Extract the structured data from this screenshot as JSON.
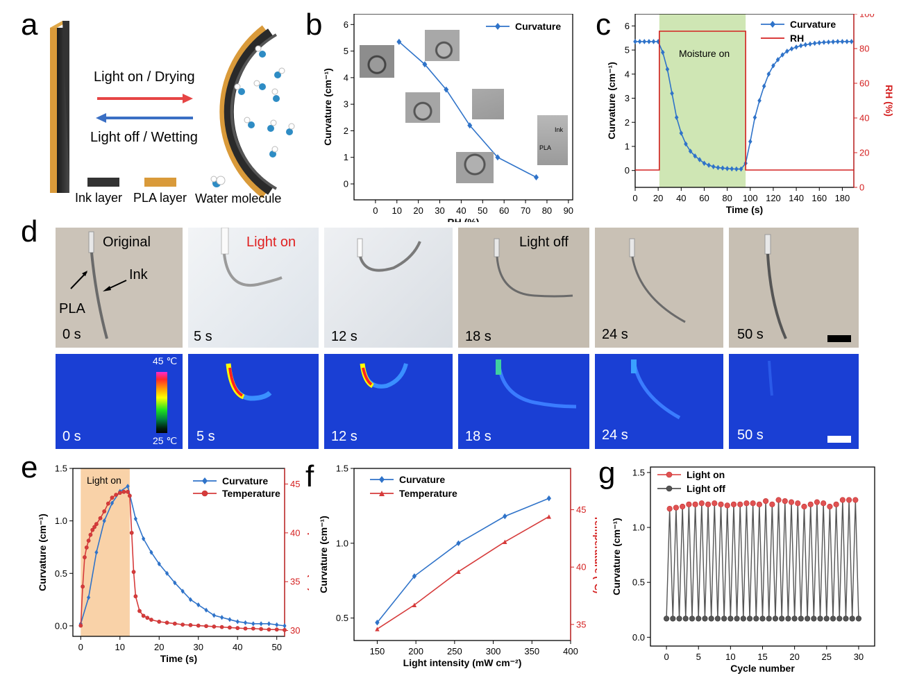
{
  "figure": {
    "panel_labels": [
      "a",
      "b",
      "c",
      "d",
      "e",
      "f",
      "g"
    ]
  },
  "panel_a": {
    "arrow_top": "Light on / Drying",
    "arrow_bottom": "Light off / Wetting",
    "legend": [
      "Ink layer",
      "PLA layer",
      "Water molecule"
    ],
    "colors": {
      "ink": "#333333",
      "pla": "#d99a3a",
      "arrow_top": "#e64545",
      "arrow_bottom": "#3a6fc4",
      "water": "#2e8cc4"
    }
  },
  "panel_d": {
    "top_captions": [
      "Original",
      "Light on",
      "",
      "Light off",
      "",
      ""
    ],
    "top_times": [
      "0 s",
      "5 s",
      "12 s",
      "18 s",
      "24 s",
      "50 s"
    ],
    "bottom_times": [
      "0 s",
      "5 s",
      "12 s",
      "18 s",
      "24 s",
      "50 s"
    ],
    "annot_pla": "PLA",
    "annot_ink": "Ink",
    "colorbar_max": "45 ℃",
    "colorbar_min": "25 ℃",
    "light_on_color": "#e02020"
  },
  "chart_data": [
    {
      "id": "b",
      "type": "line",
      "title": "",
      "xlabel": "RH (%)",
      "ylabel": "Curvature (cm⁻¹)",
      "xlim": [
        -10,
        92
      ],
      "ylim": [
        -0.6,
        6.4
      ],
      "xticks": [
        0,
        10,
        20,
        30,
        40,
        50,
        60,
        70,
        80,
        90
      ],
      "yticks": [
        0,
        1,
        2,
        3,
        4,
        5,
        6
      ],
      "series": [
        {
          "name": "Curvature",
          "color": "#2f73c9",
          "marker": "diamond",
          "x": [
            11,
            23,
            33,
            44,
            57,
            75
          ],
          "y": [
            5.35,
            4.5,
            3.55,
            2.2,
            1.0,
            0.25
          ]
        }
      ],
      "inset_labels": {
        "ink": "Ink",
        "pla": "PLA"
      }
    },
    {
      "id": "c",
      "type": "line",
      "xlabel": "Time (s)",
      "ylabel": "Curvature (cm⁻¹)",
      "y2label": "RH (%)",
      "xlim": [
        0,
        190
      ],
      "ylim": [
        -0.7,
        6.5
      ],
      "y2lim": [
        0,
        100
      ],
      "xticks": [
        0,
        20,
        40,
        60,
        80,
        100,
        120,
        140,
        160,
        180
      ],
      "yticks": [
        0,
        1,
        2,
        3,
        4,
        5,
        6
      ],
      "y2ticks": [
        0,
        20,
        40,
        60,
        80,
        100
      ],
      "annotation": "Moisture on",
      "shade": [
        21,
        96
      ],
      "series": [
        {
          "name": "Curvature",
          "color": "#2f73c9",
          "marker": "diamond",
          "axis": "left",
          "x": [
            0,
            4,
            8,
            12,
            16,
            20,
            24,
            28,
            32,
            36,
            40,
            44,
            48,
            52,
            56,
            60,
            64,
            68,
            72,
            76,
            80,
            84,
            88,
            92,
            96,
            100,
            104,
            108,
            112,
            116,
            120,
            124,
            128,
            132,
            136,
            140,
            144,
            148,
            152,
            156,
            160,
            164,
            168,
            172,
            176,
            180,
            184,
            188
          ],
          "y": [
            5.35,
            5.35,
            5.35,
            5.35,
            5.35,
            5.35,
            4.9,
            4.2,
            3.2,
            2.2,
            1.55,
            1.1,
            0.8,
            0.6,
            0.45,
            0.3,
            0.22,
            0.16,
            0.12,
            0.1,
            0.08,
            0.07,
            0.06,
            0.06,
            0.3,
            1.2,
            2.2,
            2.9,
            3.5,
            4.0,
            4.35,
            4.6,
            4.8,
            4.95,
            5.05,
            5.12,
            5.18,
            5.22,
            5.25,
            5.28,
            5.3,
            5.32,
            5.33,
            5.34,
            5.35,
            5.35,
            5.35,
            5.35
          ]
        },
        {
          "name": "RH",
          "color": "#d42020",
          "marker": "none",
          "axis": "right",
          "x": [
            0,
            21,
            21,
            96,
            96,
            190
          ],
          "y": [
            10,
            10,
            90,
            90,
            10,
            10
          ]
        }
      ]
    },
    {
      "id": "e",
      "type": "line",
      "xlabel": "Time (s)",
      "ylabel": "Curvature (cm⁻¹)",
      "y2label": "Temperature (℃)",
      "xlim": [
        -2,
        52
      ],
      "ylim": [
        -0.1,
        1.5
      ],
      "y2lim": [
        29.4,
        46.6
      ],
      "xticks": [
        0,
        10,
        20,
        30,
        40,
        50
      ],
      "yticks": [
        0.0,
        0.5,
        1.0,
        1.5
      ],
      "y2ticks": [
        30,
        35,
        40,
        45
      ],
      "annotation": "Light on",
      "shade": [
        0,
        12.5
      ],
      "series": [
        {
          "name": "Curvature",
          "color": "#2f73c9",
          "marker": "diamond",
          "axis": "left",
          "x": [
            0,
            2,
            4,
            6,
            8,
            10,
            12,
            14,
            16,
            18,
            20,
            22,
            24,
            26,
            28,
            30,
            32,
            34,
            36,
            38,
            40,
            42,
            44,
            46,
            48,
            50,
            52
          ],
          "y": [
            0.02,
            0.27,
            0.7,
            1.0,
            1.17,
            1.28,
            1.33,
            1.02,
            0.83,
            0.7,
            0.59,
            0.5,
            0.41,
            0.33,
            0.25,
            0.2,
            0.15,
            0.1,
            0.08,
            0.06,
            0.04,
            0.03,
            0.02,
            0.02,
            0.02,
            0.01,
            0.0
          ]
        },
        {
          "name": "Temperature",
          "color": "#d63b3b",
          "marker": "circle",
          "axis": "right",
          "x": [
            0,
            0.5,
            1,
            1.5,
            2,
            2.5,
            3,
            3.5,
            4,
            5,
            6,
            7,
            8,
            9,
            10,
            11,
            12,
            12.5,
            13,
            13.5,
            14,
            15,
            16,
            17,
            18,
            20,
            22,
            24,
            26,
            28,
            30,
            32,
            34,
            36,
            38,
            40,
            42,
            44,
            46,
            48,
            50,
            52
          ],
          "y": [
            30.5,
            34.5,
            37.5,
            38.5,
            39.2,
            39.8,
            40.3,
            40.6,
            40.9,
            41.5,
            42.2,
            43.0,
            43.6,
            43.9,
            44.1,
            44.2,
            44.2,
            43.8,
            40,
            36,
            33.5,
            32,
            31.5,
            31.3,
            31.1,
            30.9,
            30.8,
            30.7,
            30.6,
            30.55,
            30.5,
            30.45,
            30.4,
            30.35,
            30.3,
            30.25,
            30.2,
            30.2,
            30.15,
            30.1,
            30.1,
            30.05
          ]
        }
      ]
    },
    {
      "id": "f",
      "type": "line",
      "xlabel": "Light intensity (mW cm⁻²)",
      "ylabel": "Curvature (cm⁻¹)",
      "y2label": "Temperature (℃)",
      "xlim": [
        120,
        400
      ],
      "ylim": [
        0.35,
        1.5
      ],
      "y2lim": [
        33.6,
        48.6
      ],
      "xticks": [
        150,
        200,
        250,
        300,
        350,
        400
      ],
      "yticks": [
        0.5,
        1.0,
        1.5
      ],
      "y2ticks": [
        35,
        40,
        45
      ],
      "series": [
        {
          "name": "Curvature",
          "color": "#2f73c9",
          "marker": "diamond",
          "axis": "left",
          "x": [
            150,
            198,
            255,
            315,
            372
          ],
          "y": [
            0.47,
            0.78,
            1.0,
            1.18,
            1.3
          ]
        },
        {
          "name": "Temperature",
          "color": "#d63b3b",
          "marker": "triangle",
          "axis": "right",
          "x": [
            150,
            198,
            255,
            315,
            372
          ],
          "y": [
            34.6,
            36.7,
            39.6,
            42.2,
            44.4
          ]
        }
      ]
    },
    {
      "id": "g",
      "type": "line",
      "xlabel": "Cycle number",
      "ylabel": "Curvature (cm⁻¹)",
      "xlim": [
        -2.5,
        32.5
      ],
      "ylim": [
        -0.08,
        1.55
      ],
      "xticks": [
        0,
        5,
        10,
        15,
        20,
        25,
        30
      ],
      "yticks": [
        0.0,
        0.5,
        1.0,
        1.5
      ],
      "series": [
        {
          "name": "Light on",
          "color": "#e05252",
          "marker": "circle",
          "x": [
            0.5,
            1.5,
            2.5,
            3.5,
            4.5,
            5.5,
            6.5,
            7.5,
            8.5,
            9.5,
            10.5,
            11.5,
            12.5,
            13.5,
            14.5,
            15.5,
            16.5,
            17.5,
            18.5,
            19.5,
            20.5,
            21.5,
            22.5,
            23.5,
            24.5,
            25.5,
            26.5,
            27.5,
            28.5,
            29.5
          ],
          "y": [
            1.17,
            1.18,
            1.19,
            1.21,
            1.21,
            1.22,
            1.21,
            1.22,
            1.21,
            1.2,
            1.21,
            1.21,
            1.22,
            1.22,
            1.21,
            1.24,
            1.21,
            1.25,
            1.24,
            1.23,
            1.22,
            1.19,
            1.21,
            1.23,
            1.22,
            1.19,
            1.21,
            1.25,
            1.25,
            1.25
          ]
        },
        {
          "name": "Light off",
          "color": "#555555",
          "marker": "circle",
          "x": [
            0,
            1,
            2,
            3,
            4,
            5,
            6,
            7,
            8,
            9,
            10,
            11,
            12,
            13,
            14,
            15,
            16,
            17,
            18,
            19,
            20,
            21,
            22,
            23,
            24,
            25,
            26,
            27,
            28,
            29,
            30
          ],
          "y": [
            0.17,
            0.17,
            0.17,
            0.17,
            0.17,
            0.17,
            0.17,
            0.17,
            0.17,
            0.17,
            0.17,
            0.17,
            0.17,
            0.17,
            0.17,
            0.17,
            0.17,
            0.17,
            0.17,
            0.17,
            0.17,
            0.17,
            0.17,
            0.17,
            0.17,
            0.17,
            0.17,
            0.17,
            0.17,
            0.17,
            0.17
          ]
        }
      ]
    }
  ]
}
